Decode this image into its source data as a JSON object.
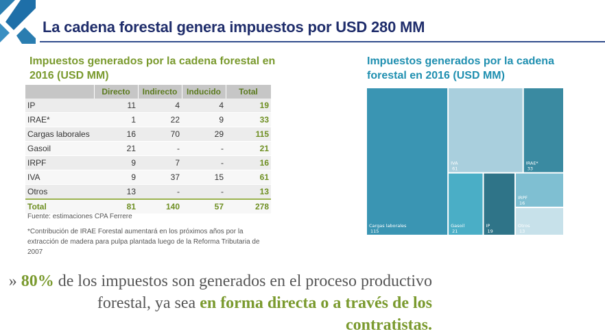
{
  "slide": {
    "title": "La cadena forestal genera impuestos por USD 280 MM"
  },
  "table": {
    "heading": "Impuestos generados por la cadena forestal en 2016 (USD MM)",
    "columns": [
      "Directo",
      "Indirecto",
      "Inducido",
      "Total"
    ],
    "rows": [
      {
        "label": "IP",
        "directo": "11",
        "indirecto": "4",
        "inducido": "4",
        "total": "19"
      },
      {
        "label": "IRAE*",
        "directo": "1",
        "indirecto": "22",
        "inducido": "9",
        "total": "33"
      },
      {
        "label": "Cargas laborales",
        "directo": "16",
        "indirecto": "70",
        "inducido": "29",
        "total": "115"
      },
      {
        "label": "Gasoil",
        "directo": "21",
        "indirecto": "-",
        "inducido": "-",
        "total": "21"
      },
      {
        "label": "IRPF",
        "directo": "9",
        "indirecto": "7",
        "inducido": "-",
        "total": "16"
      },
      {
        "label": "IVA",
        "directo": "9",
        "indirecto": "37",
        "inducido": "15",
        "total": "61"
      },
      {
        "label": "Otros",
        "directo": "13",
        "indirecto": "-",
        "inducido": "-",
        "total": "13"
      }
    ],
    "total_row": {
      "label": "Total",
      "directo": "81",
      "indirecto": "140",
      "inducido": "57",
      "total": "278"
    },
    "source": "Fuente: estimaciones CPA Ferrere",
    "note": "*Contribución de IRAE Forestal aumentará en los próximos años por la extracción de madera para pulpa plantada luego de la Reforma Tributaria de 2007"
  },
  "chart_heading": "Impuestos generados por la cadena forestal en 2016 (USD MM)",
  "chart_data": {
    "type": "treemap",
    "title": "Impuestos generados por la cadena forestal en 2016 (USD MM)",
    "items": [
      {
        "name": "Cargas laborales",
        "value": 115,
        "color": "#3a95b3"
      },
      {
        "name": "IVA",
        "value": 61,
        "color": "#a9cfdd"
      },
      {
        "name": "IRAE*",
        "value": 33,
        "color": "#3a8aa1"
      },
      {
        "name": "Gasoil",
        "value": 21,
        "color": "#4aaec6"
      },
      {
        "name": "IP",
        "value": 19,
        "color": "#2f7488"
      },
      {
        "name": "IRPF",
        "value": 16,
        "color": "#7fbfd2"
      },
      {
        "name": "Otros",
        "value": 13,
        "color": "#c7e1ea"
      }
    ]
  },
  "summary": {
    "bullet": "»",
    "pct": "80%",
    "text1": " de los impuestos son generados en el proceso productivo forestal, ya sea ",
    "highlight": "en forma directa o a través de los contratistas."
  },
  "colors": {
    "title": "#1f2d6b",
    "accent_green": "#7a9a2e",
    "accent_blue": "#1f8fb0"
  }
}
